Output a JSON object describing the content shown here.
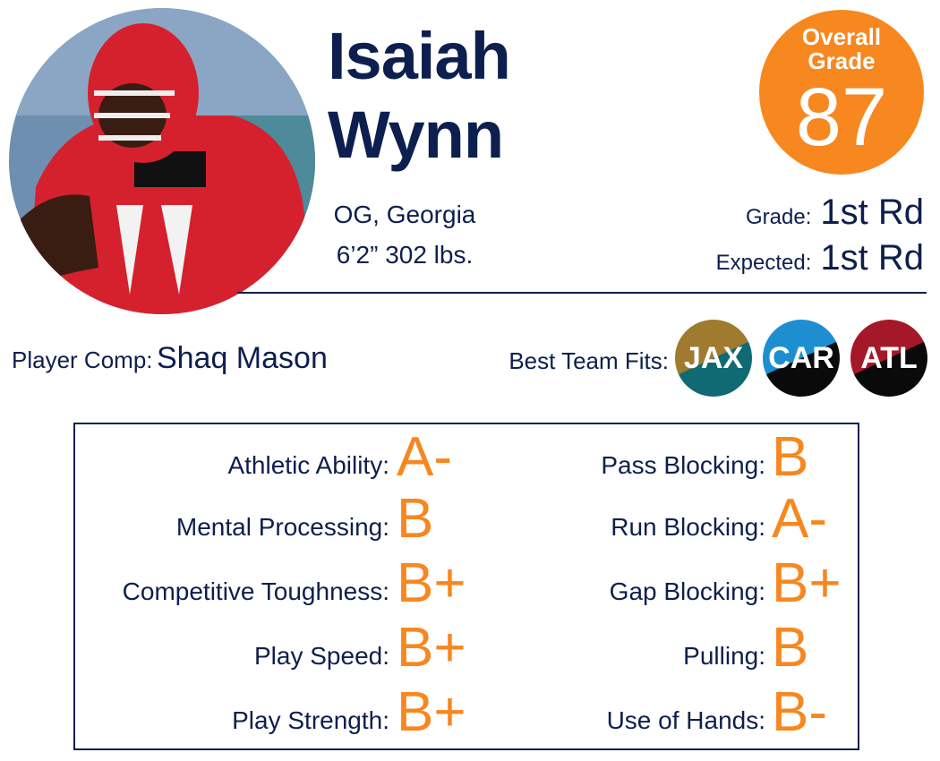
{
  "player": {
    "first_name": "Isaiah",
    "last_name": "Wynn",
    "position": "OG, Georgia",
    "measurables": "6’2” 302 lbs."
  },
  "overall": {
    "label": "Overall Grade",
    "value": 87
  },
  "draft_grades": [
    {
      "label": "Grade:",
      "value": "1st Rd"
    },
    {
      "label": "Expected:",
      "value": "1st Rd"
    }
  ],
  "player_comp": {
    "label": "Player Comp:",
    "value": "Shaq Mason"
  },
  "team_fits": {
    "label": "Best Team Fits:",
    "teams": [
      {
        "abbr": "JAX",
        "colors": [
          "#a07a2e",
          "#0f6a73"
        ]
      },
      {
        "abbr": "CAR",
        "colors": [
          "#1d8fd0",
          "#0a0a0a"
        ]
      },
      {
        "abbr": "ATL",
        "colors": [
          "#a5182a",
          "#0a0a0a"
        ]
      }
    ]
  },
  "traits": {
    "left": [
      {
        "label": "Athletic Ability:",
        "grade": "A-"
      },
      {
        "label": "Mental Processing:",
        "grade": "B"
      },
      {
        "label": "Competitive Toughness:",
        "grade": "B+"
      },
      {
        "label": "Play Speed:",
        "grade": "B+"
      },
      {
        "label": "Play Strength:",
        "grade": "B+"
      }
    ],
    "right": [
      {
        "label": "Pass Blocking:",
        "grade": "B"
      },
      {
        "label": "Run Blocking:",
        "grade": "A-"
      },
      {
        "label": "Gap Blocking:",
        "grade": "B+"
      },
      {
        "label": "Pulling:",
        "grade": "B"
      },
      {
        "label": "Use of Hands:",
        "grade": "B-"
      }
    ]
  }
}
